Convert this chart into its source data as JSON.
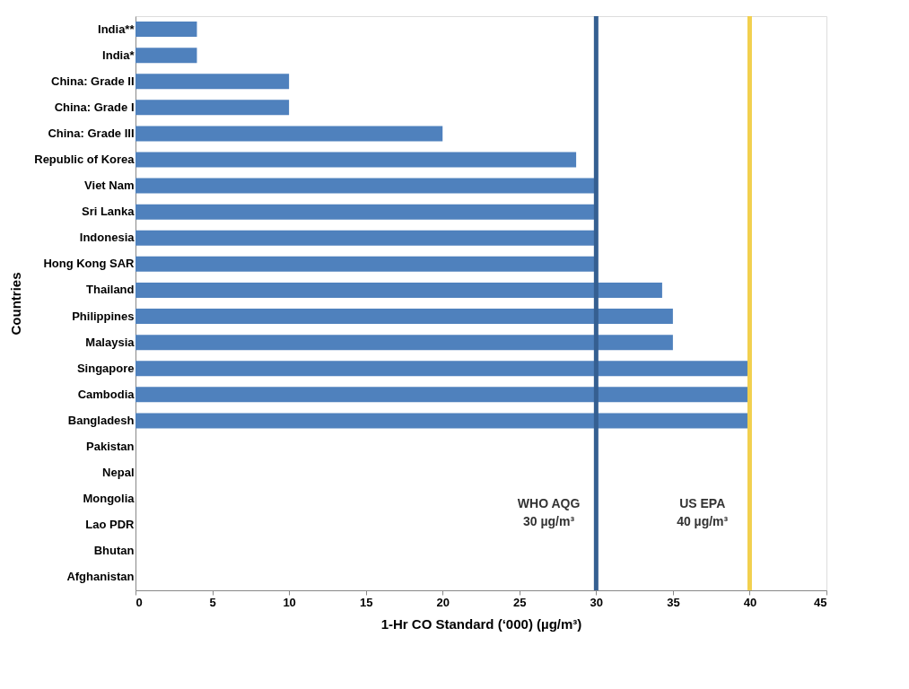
{
  "chart_data": {
    "type": "bar",
    "orientation": "horizontal",
    "xlabel": "1-Hr CO Standard (‘000) (µg/m³)",
    "ylabel": "Countries",
    "categories": [
      "India**",
      "India*",
      "China: Grade II",
      "China: Grade I",
      "China: Grade III",
      "Republic of Korea",
      "Viet Nam",
      "Sri Lanka",
      "Indonesia",
      "Hong Kong SAR",
      "Thailand",
      "Philippines",
      "Malaysia",
      "Singapore",
      "Cambodia",
      "Bangladesh",
      "Pakistan",
      "Nepal",
      "Mongolia",
      "Lao PDR",
      "Bhutan",
      "Afghanistan"
    ],
    "values": [
      4,
      4,
      10,
      10,
      20,
      28.7,
      30,
      30,
      30,
      30,
      34.3,
      35,
      35,
      40,
      40,
      40,
      null,
      null,
      null,
      null,
      null,
      null
    ],
    "color": "#4f81bd",
    "xlim": [
      0,
      45
    ],
    "xticks": [
      0,
      5,
      10,
      15,
      20,
      25,
      30,
      35,
      40,
      45
    ],
    "grid": false,
    "ref_lines": [
      {
        "axis": "x",
        "value": 30,
        "label": "WHO AQG\n30 µg/m³",
        "color": "#355f91"
      },
      {
        "axis": "x",
        "value": 40,
        "label": "US EPA\n40 µg/m³",
        "color": "#f2d04f"
      }
    ]
  }
}
